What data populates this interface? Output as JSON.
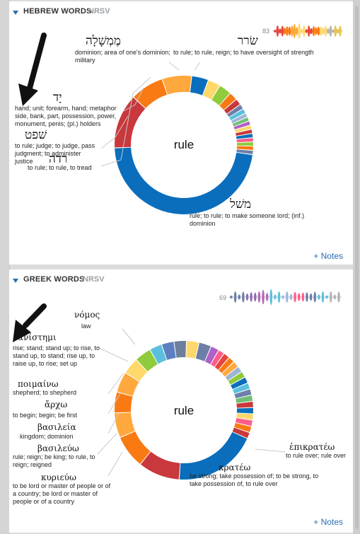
{
  "hebrew": {
    "title": "HEBREW WORDS",
    "version": "NRSV",
    "count": "83",
    "notes": "+ Notes",
    "center": "rule",
    "slices": [
      {
        "color": "#0a6ebd",
        "value": 48
      },
      {
        "color": "#c8383c",
        "value": 13
      },
      {
        "color": "#f97a13",
        "value": 8
      },
      {
        "color": "#ffa83d",
        "value": 7
      },
      {
        "color": "#0a6ebd",
        "value": 4
      },
      {
        "color": "#ffd86b",
        "value": 3
      },
      {
        "color": "#8fcb3b",
        "value": 3
      },
      {
        "color": "#f97a13",
        "value": 2
      },
      {
        "color": "#c8383c",
        "value": 1.5
      },
      {
        "color": "#6d7fa9",
        "value": 1.2
      },
      {
        "color": "#5bc0de",
        "value": 1.2
      },
      {
        "color": "#9db4d6",
        "value": 1
      },
      {
        "color": "#6fbf73",
        "value": 1
      },
      {
        "color": "#b061c6",
        "value": 1
      },
      {
        "color": "#ffd86b",
        "value": 1
      },
      {
        "color": "#c8383c",
        "value": 1
      },
      {
        "color": "#0a6ebd",
        "value": 1
      },
      {
        "color": "#ff5c8a",
        "value": 1
      },
      {
        "color": "#8fcb3b",
        "value": 1
      },
      {
        "color": "#f97a13",
        "value": 1
      },
      {
        "color": "#6d7fa9",
        "value": 1
      }
    ],
    "sparkline": [
      "#e5453c",
      "#f97a13",
      "#ffa83d",
      "#ffd86b",
      "#e5453c",
      "#f97a13",
      "#ffd86b",
      "#b3b3b3",
      "#e8c24a"
    ],
    "words": [
      {
        "word": "מֶמְשָׁלָה",
        "gloss": "dominion; area of one's dominion; military"
      },
      {
        "word": "שׂרר",
        "gloss": "to rule; to rule, reign; to have oversight of strength"
      },
      {
        "word": "יָד",
        "gloss": "hand; unit; forearm, hand; metaphor side, bank, part, possession, power, monument, penis; (pl.) holders"
      },
      {
        "word": "שׁפט",
        "gloss": "to rule; judge; to judge, pass judgment; to administer justice"
      },
      {
        "word": "רדה",
        "gloss": "to rule; to rule, to tread"
      },
      {
        "word": "משׁל",
        "gloss": "rule; to rule; to make someone lord; (inf.) dominion"
      }
    ]
  },
  "greek": {
    "title": "GREEK WORDS",
    "version": "NRSV",
    "count": "69",
    "notes": "+ Notes",
    "center": "rule",
    "slices": [
      {
        "color": "#0a6ebd",
        "value": 20
      },
      {
        "color": "#c8383c",
        "value": 10
      },
      {
        "color": "#f97a13",
        "value": 8
      },
      {
        "color": "#ffa83d",
        "value": 6
      },
      {
        "color": "#f97a13",
        "value": 5
      },
      {
        "color": "#ffa83d",
        "value": 5
      },
      {
        "color": "#ffd86b",
        "value": 4
      },
      {
        "color": "#8fcb3b",
        "value": 4
      },
      {
        "color": "#5bc0de",
        "value": 3
      },
      {
        "color": "#5b7fc0",
        "value": 3
      },
      {
        "color": "#6d7f9a",
        "value": 3
      },
      {
        "color": "#ffd86b",
        "value": 3
      },
      {
        "color": "#6d7fa9",
        "value": 3
      },
      {
        "color": "#b061c6",
        "value": 2
      },
      {
        "color": "#ff5c8a",
        "value": 1.5
      },
      {
        "color": "#e5453c",
        "value": 1.5
      },
      {
        "color": "#f97a13",
        "value": 1.5
      },
      {
        "color": "#ffa83d",
        "value": 1.5
      },
      {
        "color": "#9db4d6",
        "value": 1.5
      },
      {
        "color": "#8fcb3b",
        "value": 1.5
      },
      {
        "color": "#0a6ebd",
        "value": 1.5
      },
      {
        "color": "#5bc0de",
        "value": 1.5
      },
      {
        "color": "#6d7fa9",
        "value": 1.5
      },
      {
        "color": "#6fbf73",
        "value": 1.5
      },
      {
        "color": "#c8383c",
        "value": 1.5
      },
      {
        "color": "#0a6ebd",
        "value": 1.5
      },
      {
        "color": "#ffd86b",
        "value": 1.5
      },
      {
        "color": "#ff5c8a",
        "value": 1.5
      },
      {
        "color": "#f97a13",
        "value": 1.5
      },
      {
        "color": "#c8383c",
        "value": 1.5
      }
    ],
    "sparkline": [
      "#6d7fa9",
      "#8d6fb0",
      "#b36bb5",
      "#5bc0de",
      "#9db4d6",
      "#ff5c8a",
      "#6d7fa9",
      "#5bc0de",
      "#b3b3b3"
    ],
    "words": [
      {
        "word": "νόμος",
        "gloss": "law"
      },
      {
        "word": "ἀνίστημι",
        "gloss": "rise; stand; stand up; to rise, to stand up, to stand; rise up, to raise up, to rise; set up"
      },
      {
        "word": "ποιμαίνω",
        "gloss": "shepherd; to shepherd"
      },
      {
        "word": "ἄρχω",
        "gloss": "to begin; begin; be first"
      },
      {
        "word": "βασιλεία",
        "gloss": "kingdom; dominion"
      },
      {
        "word": "βασιλεύω",
        "gloss": "rule; reign; be king; to rule, to reign; reigned"
      },
      {
        "word": "κυριεύω",
        "gloss": "to be lord or master of people or of a country; be lord or master of people or of a country"
      },
      {
        "word": "ἐπικρατέω",
        "gloss": "to rule over; rule over"
      },
      {
        "word": "κρατέω",
        "gloss": "be strong; take possession of; to be strong, to take possession of, to rule over"
      }
    ]
  }
}
